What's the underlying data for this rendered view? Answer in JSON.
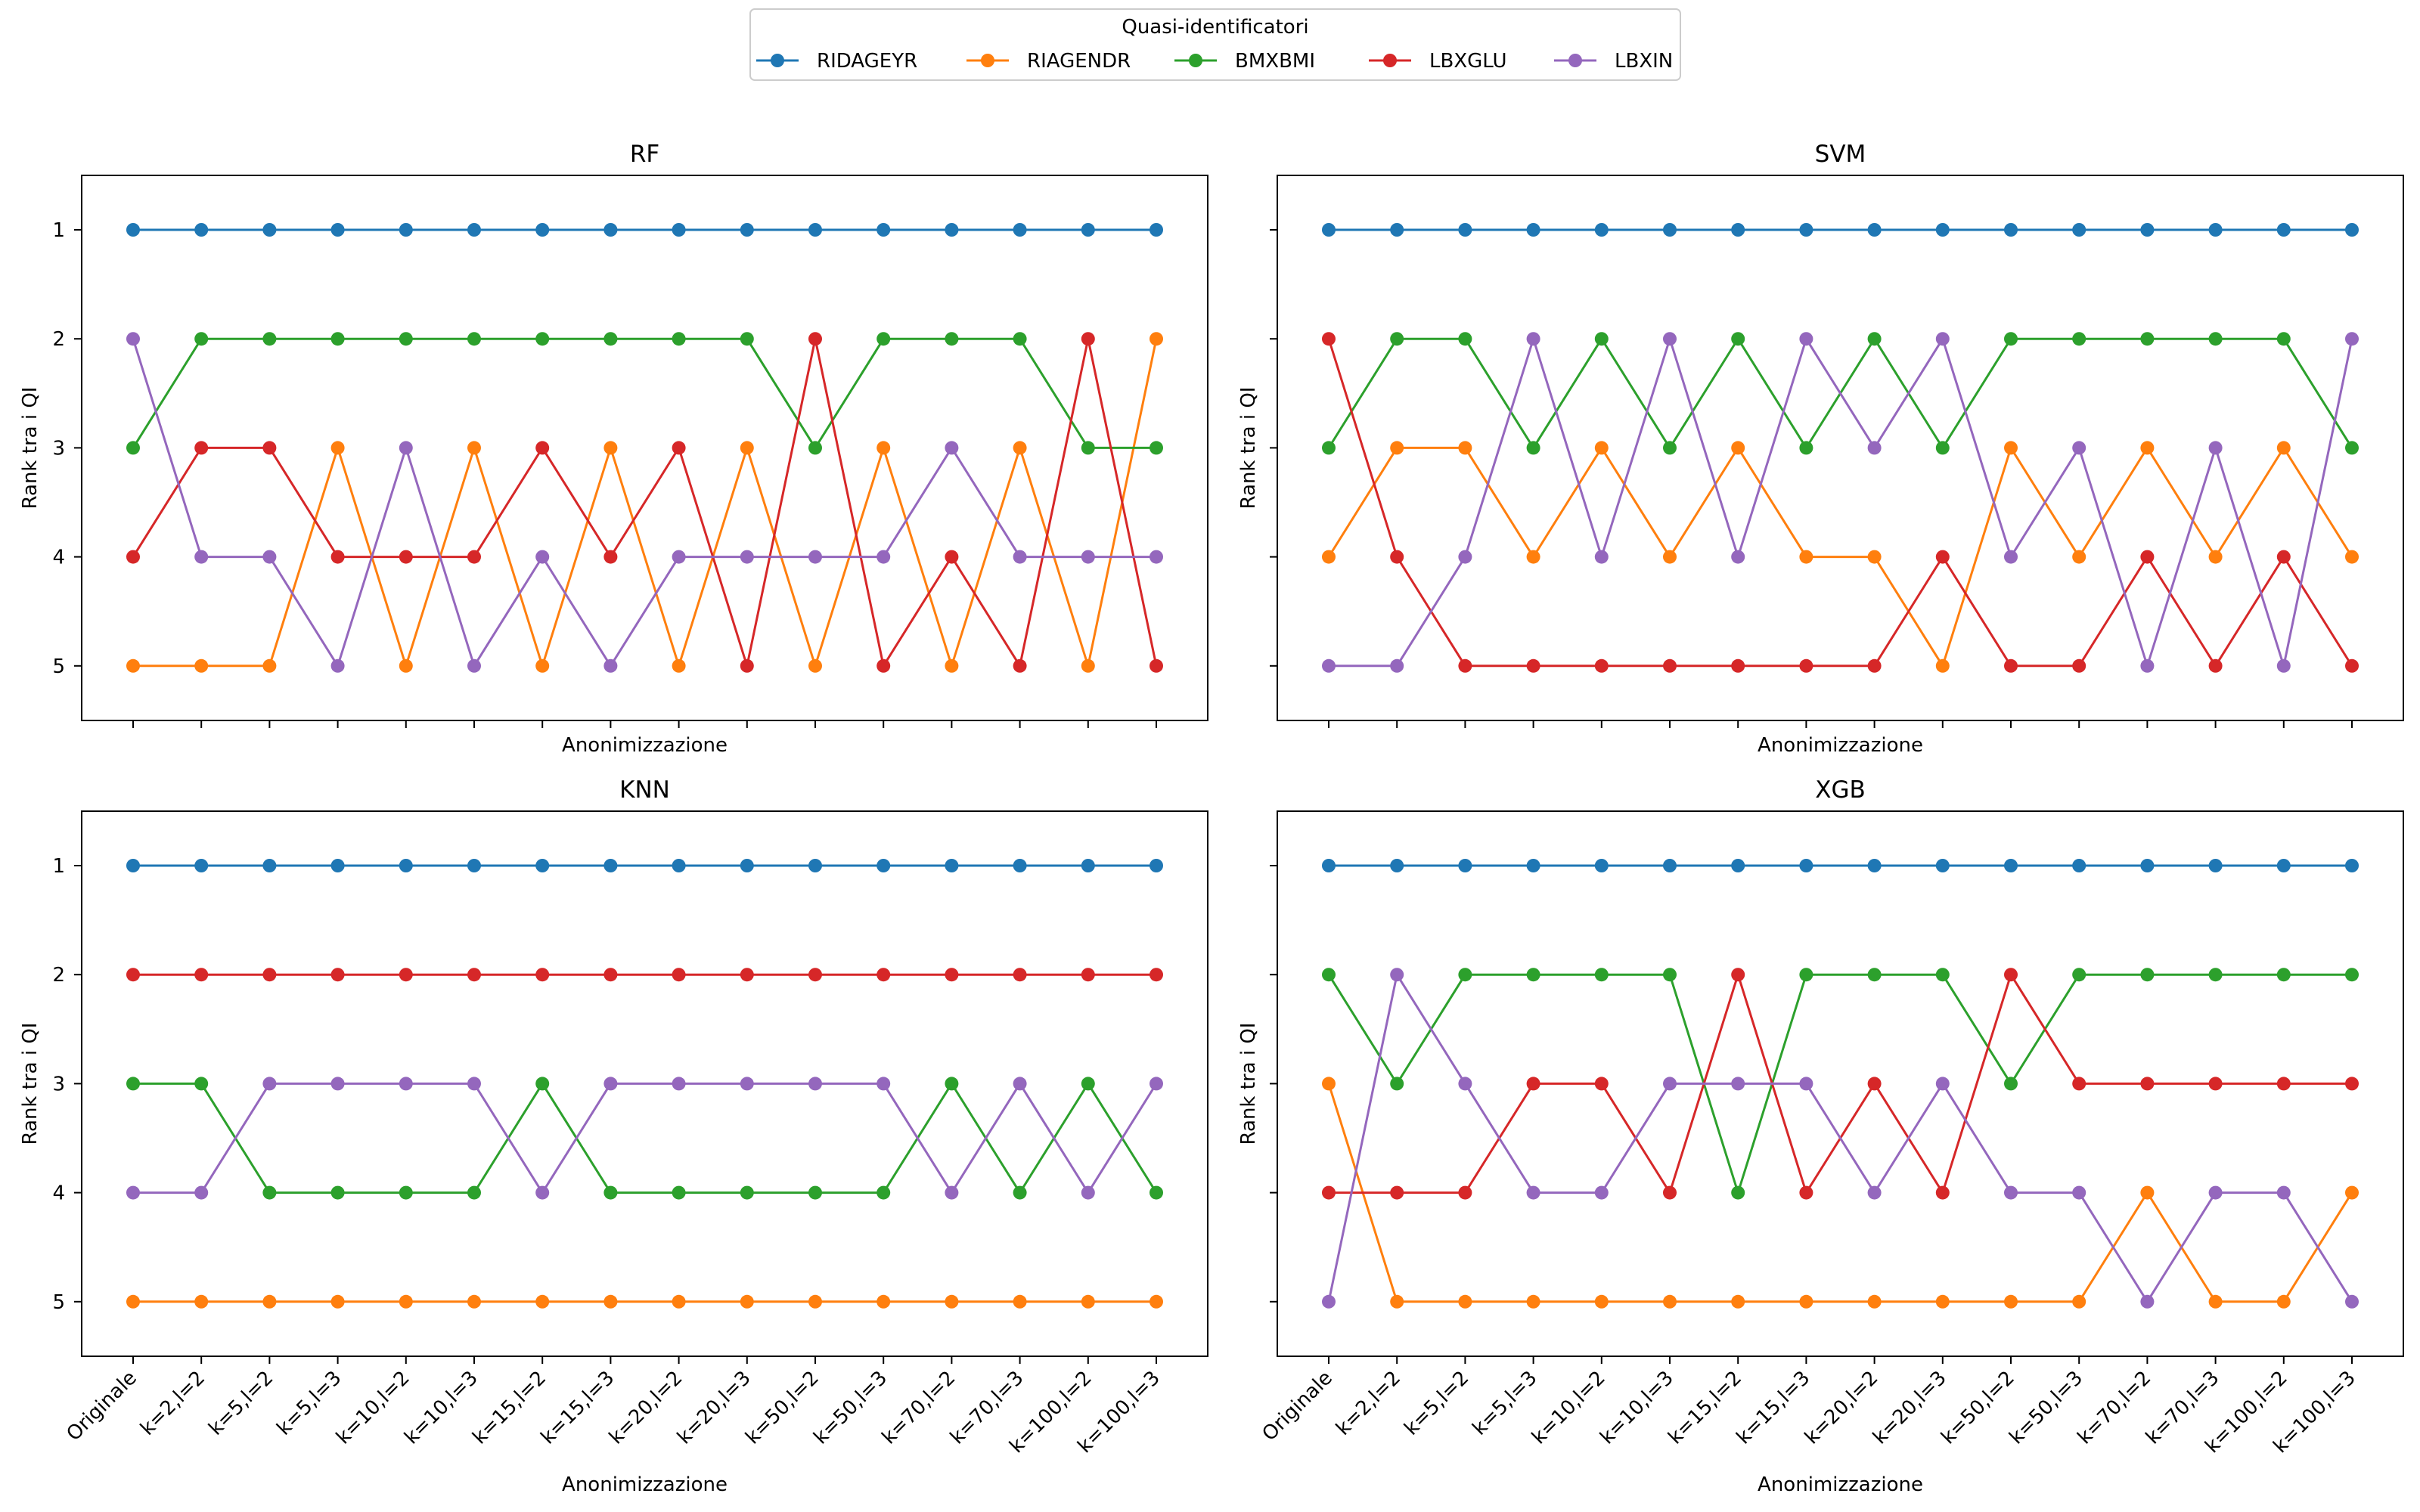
{
  "legend": {
    "title": "Quasi-identificatori",
    "placement": "top-center"
  },
  "chart_data": [
    {
      "type": "line",
      "title": "RF",
      "xlabel": "Anonimizzazione",
      "ylabel": "Rank tra i QI",
      "ylim": [
        5,
        1
      ],
      "y_inverted": true,
      "y_ticks": [
        "1",
        "2",
        "3",
        "4",
        "5"
      ],
      "show_x_ticklabels": false,
      "show_y_ticklabels": true,
      "grid": false,
      "categories": [
        "Originale",
        "k=2,l=2",
        "k=5,l=2",
        "k=5,l=3",
        "k=10,l=2",
        "k=10,l=3",
        "k=15,l=2",
        "k=15,l=3",
        "k=20,l=2",
        "k=20,l=3",
        "k=50,l=2",
        "k=50,l=3",
        "k=70,l=2",
        "k=70,l=3",
        "k=100,l=2",
        "k=100,l=3"
      ],
      "series": [
        {
          "name": "RIDAGEYR",
          "color": "#1f77b4",
          "values": [
            1,
            1,
            1,
            1,
            1,
            1,
            1,
            1,
            1,
            1,
            1,
            1,
            1,
            1,
            1,
            1
          ]
        },
        {
          "name": "RIAGENDR",
          "color": "#ff7f0e",
          "values": [
            5,
            5,
            5,
            3,
            5,
            3,
            5,
            3,
            5,
            3,
            5,
            3,
            5,
            3,
            5,
            2
          ]
        },
        {
          "name": "BMXBMI",
          "color": "#2ca02c",
          "values": [
            3,
            2,
            2,
            2,
            2,
            2,
            2,
            2,
            2,
            2,
            3,
            2,
            2,
            2,
            3,
            3
          ]
        },
        {
          "name": "LBXGLU",
          "color": "#d62728",
          "values": [
            4,
            3,
            3,
            4,
            4,
            4,
            3,
            4,
            3,
            5,
            2,
            5,
            4,
            5,
            2,
            5
          ]
        },
        {
          "name": "LBXIN",
          "color": "#9467bd",
          "values": [
            2,
            4,
            4,
            5,
            3,
            5,
            4,
            5,
            4,
            4,
            4,
            4,
            3,
            4,
            4,
            4
          ]
        }
      ]
    },
    {
      "type": "line",
      "title": "SVM",
      "xlabel": "Anonimizzazione",
      "ylabel": "Rank tra i QI",
      "ylim": [
        5,
        1
      ],
      "y_inverted": true,
      "y_ticks": [
        "1",
        "2",
        "3",
        "4",
        "5"
      ],
      "show_x_ticklabels": false,
      "show_y_ticklabels": false,
      "grid": false,
      "categories": [
        "Originale",
        "k=2,l=2",
        "k=5,l=2",
        "k=5,l=3",
        "k=10,l=2",
        "k=10,l=3",
        "k=15,l=2",
        "k=15,l=3",
        "k=20,l=2",
        "k=20,l=3",
        "k=50,l=2",
        "k=50,l=3",
        "k=70,l=2",
        "k=70,l=3",
        "k=100,l=2",
        "k=100,l=3"
      ],
      "series": [
        {
          "name": "RIDAGEYR",
          "color": "#1f77b4",
          "values": [
            1,
            1,
            1,
            1,
            1,
            1,
            1,
            1,
            1,
            1,
            1,
            1,
            1,
            1,
            1,
            1
          ]
        },
        {
          "name": "RIAGENDR",
          "color": "#ff7f0e",
          "values": [
            4,
            3,
            3,
            4,
            3,
            4,
            3,
            4,
            4,
            5,
            3,
            4,
            3,
            4,
            3,
            4
          ]
        },
        {
          "name": "BMXBMI",
          "color": "#2ca02c",
          "values": [
            3,
            2,
            2,
            3,
            2,
            3,
            2,
            3,
            2,
            3,
            2,
            2,
            2,
            2,
            2,
            3
          ]
        },
        {
          "name": "LBXGLU",
          "color": "#d62728",
          "values": [
            2,
            4,
            5,
            5,
            5,
            5,
            5,
            5,
            5,
            4,
            5,
            5,
            4,
            5,
            4,
            5
          ]
        },
        {
          "name": "LBXIN",
          "color": "#9467bd",
          "values": [
            5,
            5,
            4,
            2,
            4,
            2,
            4,
            2,
            3,
            2,
            4,
            3,
            5,
            3,
            5,
            2
          ]
        }
      ]
    },
    {
      "type": "line",
      "title": "KNN",
      "xlabel": "Anonimizzazione",
      "ylabel": "Rank tra i QI",
      "ylim": [
        5,
        1
      ],
      "y_inverted": true,
      "y_ticks": [
        "1",
        "2",
        "3",
        "4",
        "5"
      ],
      "show_x_ticklabels": true,
      "show_y_ticklabels": true,
      "grid": false,
      "categories": [
        "Originale",
        "k=2,l=2",
        "k=5,l=2",
        "k=5,l=3",
        "k=10,l=2",
        "k=10,l=3",
        "k=15,l=2",
        "k=15,l=3",
        "k=20,l=2",
        "k=20,l=3",
        "k=50,l=2",
        "k=50,l=3",
        "k=70,l=2",
        "k=70,l=3",
        "k=100,l=2",
        "k=100,l=3"
      ],
      "series": [
        {
          "name": "RIDAGEYR",
          "color": "#1f77b4",
          "values": [
            1,
            1,
            1,
            1,
            1,
            1,
            1,
            1,
            1,
            1,
            1,
            1,
            1,
            1,
            1,
            1
          ]
        },
        {
          "name": "RIAGENDR",
          "color": "#ff7f0e",
          "values": [
            5,
            5,
            5,
            5,
            5,
            5,
            5,
            5,
            5,
            5,
            5,
            5,
            5,
            5,
            5,
            5
          ]
        },
        {
          "name": "BMXBMI",
          "color": "#2ca02c",
          "values": [
            3,
            3,
            4,
            4,
            4,
            4,
            3,
            4,
            4,
            4,
            4,
            4,
            3,
            4,
            3,
            4
          ]
        },
        {
          "name": "LBXGLU",
          "color": "#d62728",
          "values": [
            2,
            2,
            2,
            2,
            2,
            2,
            2,
            2,
            2,
            2,
            2,
            2,
            2,
            2,
            2,
            2
          ]
        },
        {
          "name": "LBXIN",
          "color": "#9467bd",
          "values": [
            4,
            4,
            3,
            3,
            3,
            3,
            4,
            3,
            3,
            3,
            3,
            3,
            4,
            3,
            4,
            3
          ]
        }
      ]
    },
    {
      "type": "line",
      "title": "XGB",
      "xlabel": "Anonimizzazione",
      "ylabel": "Rank tra i QI",
      "ylim": [
        5,
        1
      ],
      "y_inverted": true,
      "y_ticks": [
        "1",
        "2",
        "3",
        "4",
        "5"
      ],
      "show_x_ticklabels": true,
      "show_y_ticklabels": false,
      "grid": false,
      "categories": [
        "Originale",
        "k=2,l=2",
        "k=5,l=2",
        "k=5,l=3",
        "k=10,l=2",
        "k=10,l=3",
        "k=15,l=2",
        "k=15,l=3",
        "k=20,l=2",
        "k=20,l=3",
        "k=50,l=2",
        "k=50,l=3",
        "k=70,l=2",
        "k=70,l=3",
        "k=100,l=2",
        "k=100,l=3"
      ],
      "series": [
        {
          "name": "RIDAGEYR",
          "color": "#1f77b4",
          "values": [
            1,
            1,
            1,
            1,
            1,
            1,
            1,
            1,
            1,
            1,
            1,
            1,
            1,
            1,
            1,
            1
          ]
        },
        {
          "name": "RIAGENDR",
          "color": "#ff7f0e",
          "values": [
            3,
            5,
            5,
            5,
            5,
            5,
            5,
            5,
            5,
            5,
            5,
            5,
            4,
            5,
            5,
            4
          ]
        },
        {
          "name": "BMXBMI",
          "color": "#2ca02c",
          "values": [
            2,
            3,
            2,
            2,
            2,
            2,
            4,
            2,
            2,
            2,
            3,
            2,
            2,
            2,
            2,
            2
          ]
        },
        {
          "name": "LBXGLU",
          "color": "#d62728",
          "values": [
            4,
            4,
            4,
            3,
            3,
            4,
            2,
            4,
            3,
            4,
            2,
            3,
            3,
            3,
            3,
            3
          ]
        },
        {
          "name": "LBXIN",
          "color": "#9467bd",
          "values": [
            5,
            2,
            3,
            4,
            4,
            3,
            3,
            3,
            4,
            3,
            4,
            4,
            5,
            4,
            4,
            5
          ]
        }
      ]
    }
  ]
}
